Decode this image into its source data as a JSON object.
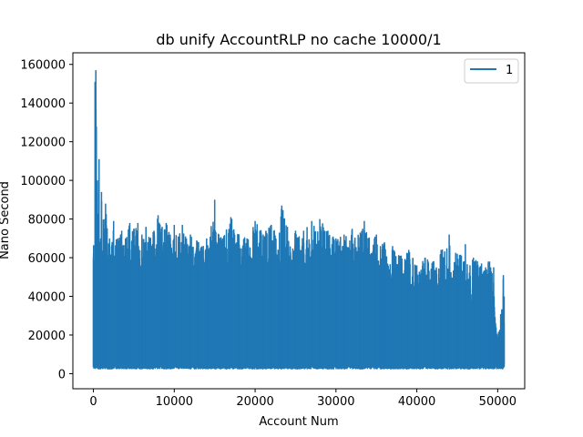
{
  "chart_data": {
    "type": "line",
    "title": "db unify AccountRLP no cache 10000/1",
    "xlabel": "Account Num",
    "ylabel": "Nano Second",
    "xlim": [
      -2540,
      53340
    ],
    "ylim": [
      -7800,
      166000
    ],
    "xticks": [
      0,
      10000,
      20000,
      30000,
      40000,
      50000
    ],
    "yticks": [
      0,
      20000,
      40000,
      60000,
      80000,
      100000,
      120000,
      140000,
      160000
    ],
    "grid": false,
    "legend_position": "top-right",
    "series": [
      {
        "name": "1",
        "color": "#1f77b4",
        "x_range": [
          0,
          50800
        ],
        "baseline_min": 2500,
        "envelope": [
          [
            0,
            60000
          ],
          [
            200,
            151000
          ],
          [
            300,
            157000
          ],
          [
            500,
            100000
          ],
          [
            700,
            111000
          ],
          [
            900,
            70000
          ],
          [
            1000,
            94000
          ],
          [
            1300,
            75000
          ],
          [
            1500,
            88000
          ],
          [
            2000,
            70000
          ],
          [
            2500,
            79000
          ],
          [
            3000,
            70000
          ],
          [
            3500,
            74000
          ],
          [
            4000,
            70000
          ],
          [
            4500,
            78000
          ],
          [
            5000,
            75000
          ],
          [
            5500,
            78000
          ],
          [
            6000,
            72000
          ],
          [
            6500,
            76000
          ],
          [
            7000,
            70000
          ],
          [
            7500,
            74000
          ],
          [
            8000,
            82000
          ],
          [
            8500,
            76000
          ],
          [
            9000,
            78000
          ],
          [
            9500,
            72000
          ],
          [
            10000,
            77000
          ],
          [
            10500,
            71000
          ],
          [
            11000,
            77000
          ],
          [
            11500,
            70000
          ],
          [
            12000,
            72000
          ],
          [
            13000,
            68000
          ],
          [
            14000,
            70000
          ],
          [
            15000,
            90000
          ],
          [
            15500,
            72000
          ],
          [
            16000,
            70000
          ],
          [
            17000,
            81000
          ],
          [
            18000,
            72000
          ],
          [
            19000,
            70000
          ],
          [
            20000,
            79000
          ],
          [
            21000,
            72000
          ],
          [
            22000,
            77000
          ],
          [
            23000,
            73000
          ],
          [
            23300,
            87000
          ],
          [
            24000,
            76000
          ],
          [
            25000,
            74000
          ],
          [
            26000,
            74000
          ],
          [
            27000,
            79000
          ],
          [
            28000,
            80000
          ],
          [
            29000,
            74000
          ],
          [
            30000,
            70000
          ],
          [
            31000,
            72000
          ],
          [
            32000,
            75000
          ],
          [
            33000,
            73000
          ],
          [
            33500,
            79000
          ],
          [
            34000,
            70000
          ],
          [
            35000,
            72000
          ],
          [
            35500,
            66000
          ],
          [
            36000,
            68000
          ],
          [
            37000,
            66000
          ],
          [
            38000,
            61000
          ],
          [
            39000,
            64000
          ],
          [
            40000,
            56000
          ],
          [
            41000,
            60000
          ],
          [
            42000,
            58000
          ],
          [
            43000,
            64000
          ],
          [
            44000,
            72000
          ],
          [
            45000,
            62000
          ],
          [
            46000,
            67000
          ],
          [
            47000,
            60000
          ],
          [
            48000,
            57000
          ],
          [
            49000,
            58000
          ],
          [
            49500,
            55000
          ],
          [
            49800,
            24000
          ],
          [
            50200,
            22000
          ],
          [
            50700,
            51000
          ],
          [
            50800,
            40000
          ]
        ],
        "body_top": [
          [
            0,
            62000
          ],
          [
            2000,
            62000
          ],
          [
            10000,
            63000
          ],
          [
            20000,
            62000
          ],
          [
            30000,
            62000
          ],
          [
            36000,
            55000
          ],
          [
            40000,
            50000
          ],
          [
            45000,
            50000
          ],
          [
            49000,
            50000
          ],
          [
            49500,
            48000
          ],
          [
            49800,
            20000
          ],
          [
            50300,
            20000
          ],
          [
            50700,
            40000
          ],
          [
            50800,
            30000
          ]
        ]
      }
    ]
  }
}
